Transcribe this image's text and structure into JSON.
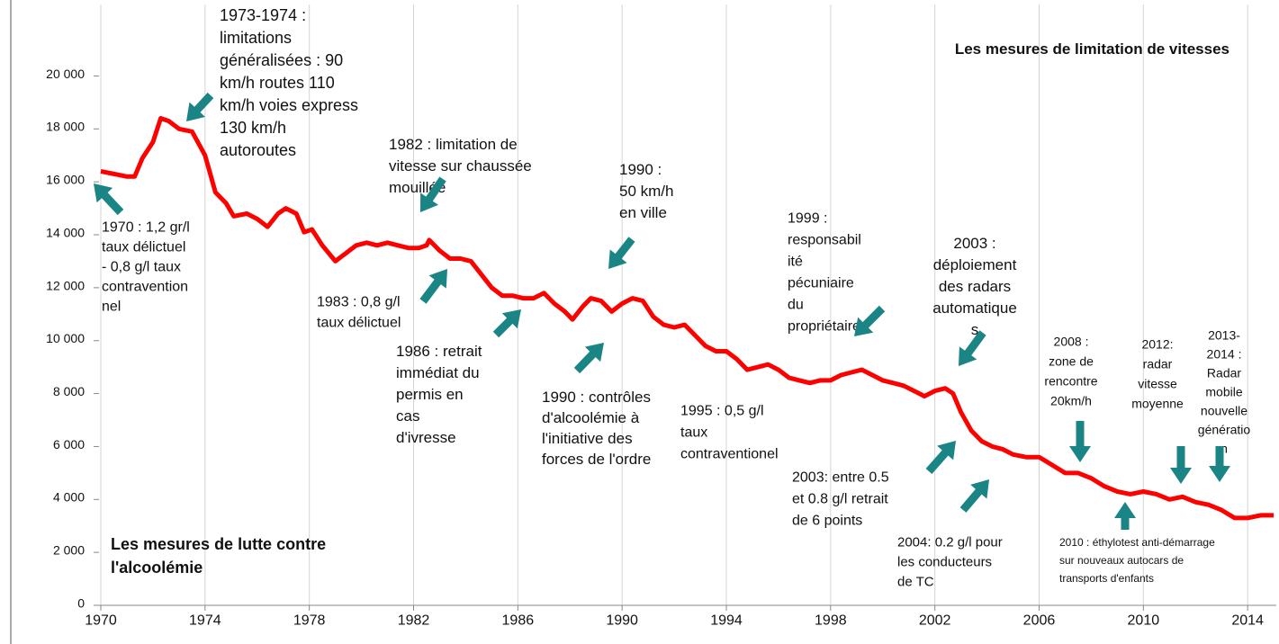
{
  "chart_data": {
    "type": "line",
    "titles": [
      "Les mesures de limitation de vitesses",
      "Les mesures de lutte contre",
      "l'alcoolémie"
    ],
    "xlim": [
      1970,
      2015.1
    ],
    "ylim": [
      0,
      22700
    ],
    "xticks": [
      1970,
      1974,
      1978,
      1982,
      1986,
      1990,
      1994,
      1998,
      2002,
      2006,
      2010,
      2014
    ],
    "yticks": [
      0,
      {
        "value": 2000,
        "label": "2 000"
      },
      {
        "value": 4000,
        "label": "4 000"
      },
      {
        "value": 6000,
        "label": "6 000"
      },
      {
        "value": 8000,
        "label": "8 000"
      },
      {
        "value": 10000,
        "label": "10 000"
      },
      {
        "value": 12000,
        "label": "12 000"
      },
      {
        "value": 14000,
        "label": "14 000"
      },
      {
        "value": 16000,
        "label": "16 000"
      },
      {
        "value": 18000,
        "label": "18 000"
      },
      {
        "value": 20000,
        "label": "20 000"
      }
    ],
    "grid": true,
    "series": [
      {
        "color": "#ff0000",
        "x": [
          1970.0,
          1971.0,
          1971.3,
          1971.6,
          1972.0,
          1972.3,
          1972.6,
          1973.0,
          1973.5,
          1974.0,
          1974.4,
          1974.8,
          1975.1,
          1975.6,
          1976.0,
          1976.4,
          1976.8,
          1977.1,
          1977.5,
          1977.8,
          1978.1,
          1978.5,
          1979.0,
          1979.4,
          1979.8,
          1980.2,
          1980.6,
          1981.0,
          1981.4,
          1981.8,
          1982.2,
          1982.5,
          1982.6,
          1983.0,
          1983.4,
          1983.8,
          1984.2,
          1984.6,
          1985.0,
          1985.4,
          1985.8,
          1986.2,
          1986.6,
          1987.0,
          1987.4,
          1987.8,
          1988.1,
          1988.5,
          1988.8,
          1989.2,
          1989.6,
          1990.0,
          1990.4,
          1990.8,
          1991.2,
          1991.6,
          1992.0,
          1992.4,
          1992.8,
          1993.2,
          1993.6,
          1994.0,
          1994.4,
          1994.8,
          1995.2,
          1995.6,
          1996.0,
          1996.4,
          1996.8,
          1997.2,
          1997.6,
          1998.0,
          1998.4,
          1998.8,
          1999.2,
          1999.6,
          2000.0,
          2000.4,
          2000.8,
          2001.2,
          2001.6,
          2002.0,
          2002.4,
          2002.7,
          2003.0,
          2003.4,
          2003.8,
          2004.2,
          2004.6,
          2005.0,
          2005.5,
          2006.0,
          2006.5,
          2007.0,
          2007.5,
          2008.0,
          2008.5,
          2009.0,
          2009.5,
          2010.0,
          2010.5,
          2011.0,
          2011.5,
          2012.0,
          2012.5,
          2013.0,
          2013.5,
          2014.0,
          2014.5,
          2015.0
        ],
        "values": [
          16400,
          16200,
          16200,
          16900,
          17500,
          18400,
          18300,
          18000,
          17900,
          17000,
          15600,
          15200,
          14700,
          14800,
          14600,
          14300,
          14800,
          15000,
          14800,
          14100,
          14200,
          13600,
          13000,
          13300,
          13600,
          13700,
          13600,
          13700,
          13600,
          13500,
          13500,
          13600,
          13800,
          13400,
          13100,
          13100,
          13000,
          12500,
          12000,
          11700,
          11700,
          11600,
          11600,
          11800,
          11400,
          11100,
          10800,
          11300,
          11600,
          11500,
          11100,
          11400,
          11600,
          11500,
          10900,
          10600,
          10500,
          10600,
          10200,
          9800,
          9600,
          9600,
          9300,
          8900,
          9000,
          9100,
          8900,
          8600,
          8500,
          8400,
          8500,
          8500,
          8700,
          8800,
          8900,
          8700,
          8500,
          8400,
          8300,
          8100,
          7900,
          8100,
          8200,
          8000,
          7300,
          6600,
          6200,
          6000,
          5900,
          5700,
          5600,
          5600,
          5300,
          5000,
          5000,
          4800,
          4500,
          4300,
          4200,
          4300,
          4200,
          4000,
          4100,
          3900,
          3800,
          3600,
          3300,
          3300,
          3400,
          3400
        ]
      }
    ],
    "annotations": [
      [
        "1973-1974 :",
        "limitations",
        "généralisées : 90",
        "km/h routes 110",
        "km/h voies express",
        "130 km/h",
        "autoroutes"
      ],
      [
        "1970 : 1,2 gr/l",
        "taux délictuel",
        "- 0,8 g/l  taux",
        "contravention",
        "nel"
      ],
      [
        "1982 : limitation de",
        "vitesse sur chaussée",
        "mouillée"
      ],
      [
        "1983 : 0,8 g/l",
        "taux délictuel"
      ],
      [
        "1986 : retrait",
        "immédiat du",
        "permis  en",
        "cas",
        "d'ivresse"
      ],
      [
        "1990 :",
        "50 km/h",
        "en ville"
      ],
      [
        "1990 : contrôles",
        "d'alcoolémie à",
        "l'initiative des",
        "forces de l'ordre"
      ],
      [
        "1995 : 0,5 g/l",
        "taux",
        "contraventionel"
      ],
      [
        "1999 :",
        "responsabil",
        "ité",
        "pécuniaire",
        "du",
        "propriétaire"
      ],
      [
        "2003 :",
        "déploiement",
        "des  radars",
        "automatique",
        "s"
      ],
      [
        "2003: entre 0.5",
        "et 0.8 g/l  retrait",
        "de 6 points"
      ],
      [
        "2004: 0.2 g/l  pour",
        "les conducteurs",
        "de TC"
      ],
      [
        "2008 :",
        "zone de",
        "rencontre",
        "20km/h"
      ],
      [
        "2012:",
        "radar",
        "vitesse",
        "moyenne"
      ],
      [
        "2013-",
        "2014 :",
        "Radar",
        "mobile",
        "nouvelle",
        "génératio",
        "n"
      ],
      [
        "2010 : éthylotest anti-démarrage",
        "sur nouveaux autocars de",
        "transports d'enfants"
      ]
    ]
  }
}
